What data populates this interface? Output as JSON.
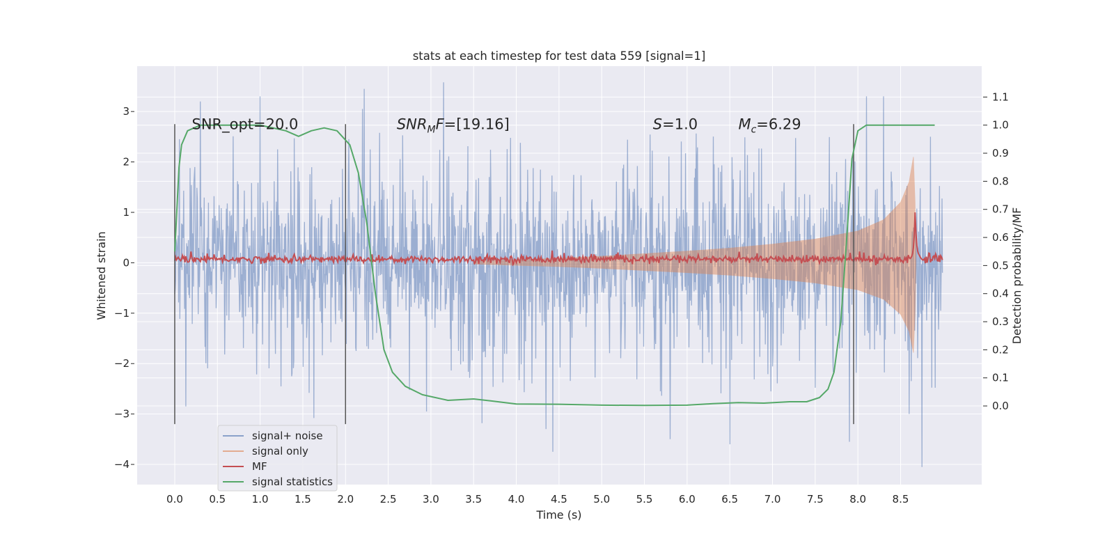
{
  "chart_data": {
    "type": "line",
    "title": "stats at each timestep for test data 559 [signal=1]",
    "xlabel": "Time (s)",
    "ylabel": "Whitened strain",
    "y2label": "Detection probability/MF",
    "xlim": [
      -0.44,
      9.45
    ],
    "ylim": [
      -4.4,
      3.9
    ],
    "y2lim": [
      -0.28,
      1.21
    ],
    "grid": true,
    "legend_position": "lower-left",
    "x_ticks": [
      "0.0",
      "0.5",
      "1.0",
      "1.5",
      "2.0",
      "2.5",
      "3.0",
      "3.5",
      "4.0",
      "4.5",
      "5.0",
      "5.5",
      "6.0",
      "6.5",
      "7.0",
      "7.5",
      "8.0",
      "8.5"
    ],
    "y_ticks": [
      "3",
      "2",
      "1",
      "0",
      "−1",
      "−2",
      "−3",
      "−4"
    ],
    "y2_ticks": [
      "1.1",
      "1.0",
      "0.9",
      "0.8",
      "0.7",
      "0.6",
      "0.5",
      "0.4",
      "0.3",
      "0.2",
      "0.1",
      "0.0"
    ],
    "annotations": [
      {
        "text": "SNR_opt=20.0",
        "x": 0.2,
        "y": 2.65
      },
      {
        "text_italic": "SNR",
        "sub": "M",
        "text_italic2": "F",
        "text_rest": "=[19.16]",
        "x": 2.6,
        "y": 2.65
      },
      {
        "text_italic": "S",
        "text_rest": "=1.0",
        "x": 5.6,
        "y": 2.65
      },
      {
        "text_italic": "M",
        "sub": "c",
        "text_rest": "=6.29",
        "x": 6.6,
        "y": 2.65
      }
    ],
    "vlines": [
      0.0,
      2.0,
      7.95
    ],
    "vline_range": [
      -3.2,
      2.75
    ],
    "noise_envelope": {
      "x_start": 0.0,
      "x_end": 8.99,
      "amplitude_typ": 2.2,
      "outlier_max": 3.55,
      "outlier_min": -4.0
    },
    "series": [
      {
        "name": "signal+ noise",
        "color": "#4c72b0",
        "axis": "left",
        "x_range": [
          0.0,
          8.99
        ],
        "peaks": [
          {
            "x": 0.13,
            "y": -2.85
          },
          {
            "x": 0.3,
            "y": 3.2
          },
          {
            "x": 1.0,
            "y": 3.3
          },
          {
            "x": 1.63,
            "y": -3.08
          },
          {
            "x": 2.2,
            "y": 3.05
          },
          {
            "x": 2.22,
            "y": 3.45
          },
          {
            "x": 2.95,
            "y": -2.95
          },
          {
            "x": 3.15,
            "y": 3.58
          },
          {
            "x": 3.6,
            "y": -3.18
          },
          {
            "x": 4.35,
            "y": -3.3
          },
          {
            "x": 4.43,
            "y": -3.75
          },
          {
            "x": 5.8,
            "y": -3.5
          },
          {
            "x": 6.5,
            "y": -3.6
          },
          {
            "x": 7.9,
            "y": -3.55
          },
          {
            "x": 8.1,
            "y": 3.3
          },
          {
            "x": 8.3,
            "y": 3.3
          },
          {
            "x": 8.6,
            "y": -3.0
          },
          {
            "x": 8.75,
            "y": -4.05
          },
          {
            "x": 8.85,
            "y": 2.5
          }
        ]
      },
      {
        "name": "signal only",
        "color": "#dd8452",
        "axis": "left",
        "envelope": [
          {
            "x": 3.5,
            "y": 0.03
          },
          {
            "x": 4.0,
            "y": 0.06
          },
          {
            "x": 4.5,
            "y": 0.09
          },
          {
            "x": 5.0,
            "y": 0.13
          },
          {
            "x": 5.5,
            "y": 0.18
          },
          {
            "x": 6.0,
            "y": 0.23
          },
          {
            "x": 6.5,
            "y": 0.29
          },
          {
            "x": 7.0,
            "y": 0.37
          },
          {
            "x": 7.5,
            "y": 0.47
          },
          {
            "x": 8.0,
            "y": 0.63
          },
          {
            "x": 8.3,
            "y": 0.85
          },
          {
            "x": 8.5,
            "y": 1.2
          },
          {
            "x": 8.6,
            "y": 1.6
          },
          {
            "x": 8.65,
            "y": 2.1
          },
          {
            "x": 8.67,
            "y": 1.2
          },
          {
            "x": 8.68,
            "y": 0.0
          }
        ]
      },
      {
        "name": "MF",
        "color": "#c44e52",
        "axis": "left",
        "baseline": 0.07,
        "x_range": [
          0.0,
          8.99
        ],
        "spike": {
          "x": 8.67,
          "y": 1.0
        }
      },
      {
        "name": "signal statistics",
        "color": "#55a868",
        "axis": "right",
        "points": [
          {
            "x": 0.0,
            "y": 0.55
          },
          {
            "x": 0.05,
            "y": 0.85
          },
          {
            "x": 0.08,
            "y": 0.93
          },
          {
            "x": 0.15,
            "y": 0.98
          },
          {
            "x": 0.3,
            "y": 1.0
          },
          {
            "x": 1.0,
            "y": 1.0
          },
          {
            "x": 1.3,
            "y": 0.98
          },
          {
            "x": 1.45,
            "y": 0.96
          },
          {
            "x": 1.6,
            "y": 0.98
          },
          {
            "x": 1.75,
            "y": 0.99
          },
          {
            "x": 1.9,
            "y": 0.98
          },
          {
            "x": 2.05,
            "y": 0.93
          },
          {
            "x": 2.15,
            "y": 0.83
          },
          {
            "x": 2.25,
            "y": 0.65
          },
          {
            "x": 2.35,
            "y": 0.4
          },
          {
            "x": 2.45,
            "y": 0.2
          },
          {
            "x": 2.55,
            "y": 0.12
          },
          {
            "x": 2.7,
            "y": 0.07
          },
          {
            "x": 2.9,
            "y": 0.04
          },
          {
            "x": 3.2,
            "y": 0.02
          },
          {
            "x": 3.5,
            "y": 0.025
          },
          {
            "x": 3.7,
            "y": 0.018
          },
          {
            "x": 4.0,
            "y": 0.007
          },
          {
            "x": 4.5,
            "y": 0.006
          },
          {
            "x": 5.0,
            "y": 0.003
          },
          {
            "x": 5.5,
            "y": 0.002
          },
          {
            "x": 6.0,
            "y": 0.003
          },
          {
            "x": 6.3,
            "y": 0.008
          },
          {
            "x": 6.6,
            "y": 0.012
          },
          {
            "x": 6.9,
            "y": 0.01
          },
          {
            "x": 7.2,
            "y": 0.015
          },
          {
            "x": 7.4,
            "y": 0.015
          },
          {
            "x": 7.55,
            "y": 0.03
          },
          {
            "x": 7.65,
            "y": 0.06
          },
          {
            "x": 7.72,
            "y": 0.12
          },
          {
            "x": 7.8,
            "y": 0.3
          },
          {
            "x": 7.87,
            "y": 0.6
          },
          {
            "x": 7.93,
            "y": 0.88
          },
          {
            "x": 8.0,
            "y": 0.98
          },
          {
            "x": 8.1,
            "y": 1.0
          },
          {
            "x": 8.3,
            "y": 1.0
          },
          {
            "x": 8.9,
            "y": 1.0
          }
        ]
      }
    ]
  },
  "legend": {
    "items": [
      {
        "label": "signal+ noise",
        "color": "#4c72b0"
      },
      {
        "label": "signal only",
        "color": "#dd8452"
      },
      {
        "label": "MF",
        "color": "#c44e52"
      },
      {
        "label": "signal statistics",
        "color": "#55a868"
      }
    ]
  },
  "style": {
    "plot_background": "#eaeaf2",
    "grid_color": "#ffffff",
    "text_color": "#262626",
    "vline_color": "#555555"
  }
}
